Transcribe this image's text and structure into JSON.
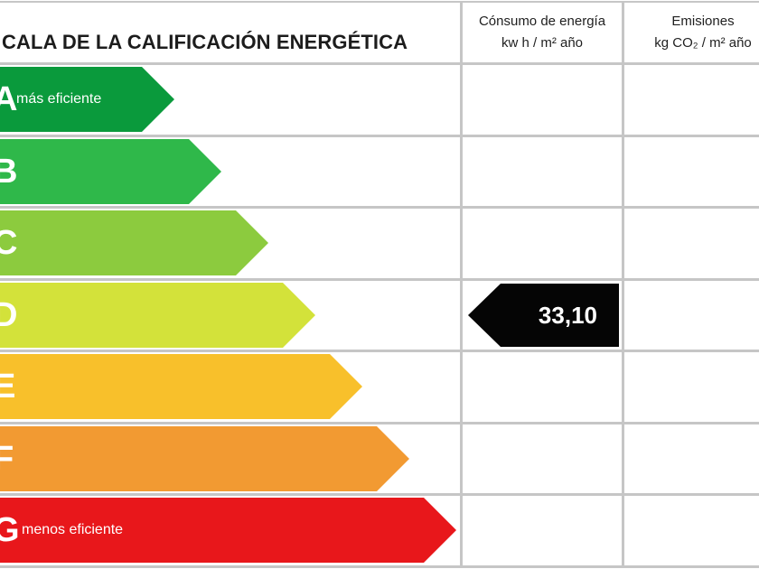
{
  "header": {
    "title": "CALA DE LA CALIFICACIÓN ENERGÉTICA",
    "consumo_line1": "Cónsumo de energía",
    "consumo_line2": "kw h / m² año",
    "emisiones_line1": "Emisiones",
    "emisiones_line2": "kg CO₂ / m² año"
  },
  "colors": {
    "A": "#0a9a3c",
    "B": "#2fb84a",
    "C": "#8ccb3e",
    "D": "#d3e23a",
    "E": "#f8c02b",
    "F": "#f29a32",
    "G": "#e8171b",
    "pointer": "#050505",
    "grid": "#c6c6c6"
  },
  "chart_data": {
    "type": "bar",
    "categories": [
      "A",
      "B",
      "C",
      "D",
      "E",
      "F",
      "G"
    ],
    "annotations": {
      "A": "más eficiente",
      "G": "menos eficiente"
    },
    "rating": {
      "consumo": {
        "class": "D",
        "value": "33,10"
      },
      "emisiones": null
    }
  }
}
